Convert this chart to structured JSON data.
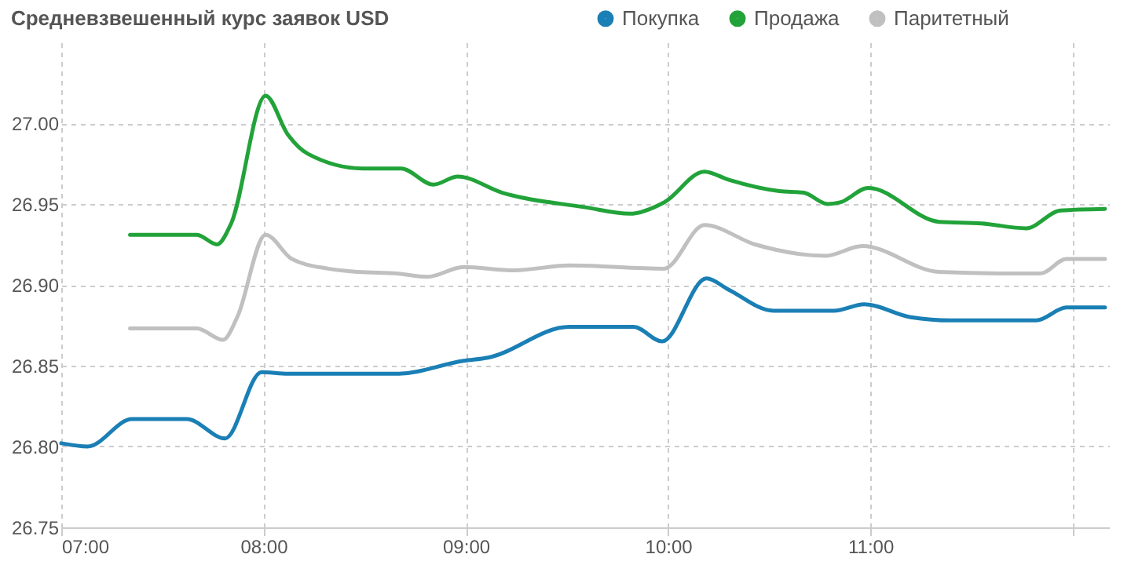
{
  "chart_data": {
    "type": "line",
    "title": "Средневзвешенный курс заявок USD",
    "legend": "top right",
    "grid": true,
    "marker": "none",
    "line_style": "solid",
    "xlim": [
      7,
      12.18
    ],
    "xticks": [
      {
        "value": 7,
        "label": "07:00"
      },
      {
        "value": 8,
        "label": "08:00"
      },
      {
        "value": 9,
        "label": "09:00"
      },
      {
        "value": 10,
        "label": "10:00"
      },
      {
        "value": 11,
        "label": "11:00"
      },
      {
        "value": 12,
        "label": null
      }
    ],
    "ylim": [
      26.75,
      27.05
    ],
    "yticks": [
      {
        "value": 26.75,
        "label": "26.75"
      },
      {
        "value": 26.8,
        "label": "26.80"
      },
      {
        "value": 26.85,
        "label": "26.85"
      },
      {
        "value": 26.9,
        "label": "26.90"
      },
      {
        "value": 26.95,
        "label": "26.95"
      },
      {
        "value": 27,
        "label": "27.00"
      }
    ],
    "series": [
      {
        "name": "Покупка",
        "color": "#1a7fb5",
        "x": [
          7.0,
          7.13,
          7.35,
          7.62,
          7.81,
          7.99,
          8.12,
          8.66,
          8.99,
          9.11,
          9.51,
          9.61,
          9.83,
          9.97,
          10.19,
          10.3,
          10.52,
          10.82,
          10.97,
          11.2,
          11.4,
          11.82,
          11.97,
          12.16
        ],
        "values": [
          26.802,
          26.8,
          26.817,
          26.817,
          26.805,
          26.846,
          26.845,
          26.845,
          26.853,
          26.855,
          26.874,
          26.874,
          26.874,
          26.865,
          26.904,
          26.897,
          26.884,
          26.884,
          26.888,
          26.88,
          26.878,
          26.878,
          26.886,
          26.886
        ]
      },
      {
        "name": "Продажа",
        "color": "#22a33a",
        "x": [
          7.34,
          7.67,
          7.77,
          7.84,
          8.01,
          8.12,
          8.22,
          8.49,
          8.68,
          8.84,
          8.96,
          9.18,
          9.59,
          9.81,
          9.98,
          10.18,
          10.3,
          10.55,
          10.67,
          10.79,
          10.85,
          10.99,
          11.34,
          11.55,
          11.77,
          11.94,
          12.16
        ],
        "values": [
          26.931,
          26.931,
          26.925,
          26.938,
          27.017,
          26.993,
          26.981,
          26.972,
          26.972,
          26.962,
          26.967,
          26.957,
          26.948,
          26.944,
          26.951,
          26.97,
          26.965,
          26.958,
          26.957,
          26.95,
          26.951,
          26.96,
          26.939,
          26.938,
          26.935,
          26.946,
          26.947
        ]
      },
      {
        "name": "Паритетный",
        "color": "#c0c0c0",
        "x": [
          7.34,
          7.67,
          7.8,
          7.87,
          8.01,
          8.14,
          8.32,
          8.47,
          8.66,
          8.81,
          8.99,
          9.24,
          9.51,
          9.98,
          10.18,
          10.43,
          10.78,
          10.96,
          11.34,
          11.75,
          11.84,
          11.97,
          12.16
        ],
        "values": [
          26.873,
          26.873,
          26.866,
          26.88,
          26.931,
          26.916,
          26.91,
          26.908,
          26.907,
          26.905,
          26.911,
          26.909,
          26.912,
          26.91,
          26.937,
          26.925,
          26.918,
          26.924,
          26.908,
          26.907,
          26.907,
          26.916,
          26.916
        ]
      }
    ]
  }
}
